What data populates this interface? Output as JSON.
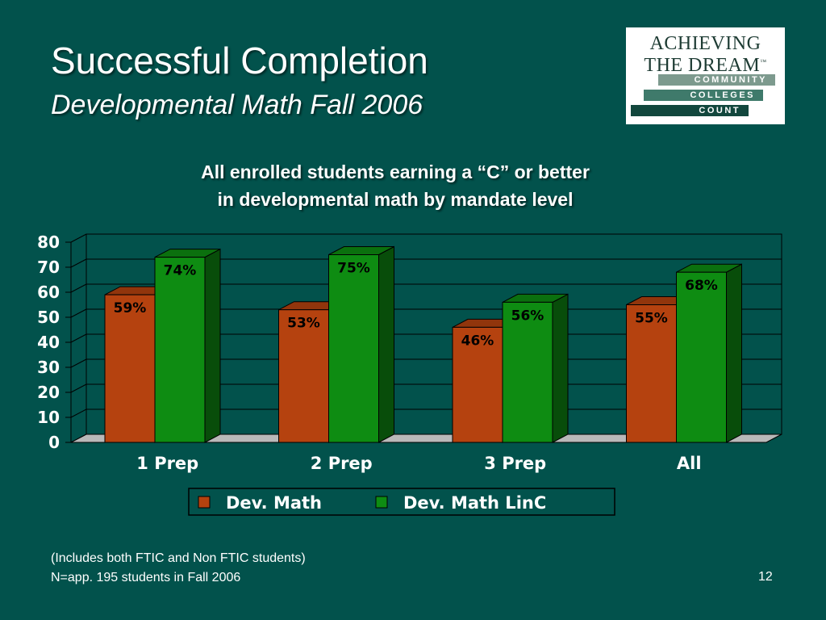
{
  "slide": {
    "title": "Successful Completion",
    "subtitle": "Developmental Math Fall 2006",
    "chart_heading_line1": "All enrolled students earning a “C” or better",
    "chart_heading_line2": "in developmental math by mandate level",
    "footnote_line1": "(Includes both FTIC and Non FTIC students)",
    "footnote_line2": "N=app. 195 students in Fall 2006",
    "page_number": "12"
  },
  "logo": {
    "line1": "ACHIEVING",
    "line2": "THE DREAM",
    "trademark": "™",
    "bar1": "COMMUNITY",
    "bar2": "COLLEGES",
    "bar3": "COUNT"
  },
  "chart_data": {
    "type": "bar",
    "categories": [
      "1 Prep",
      "2 Prep",
      "3 Prep",
      "All"
    ],
    "series": [
      {
        "name": "Dev. Math",
        "values": [
          59,
          53,
          46,
          55
        ],
        "labels": [
          "59%",
          "53%",
          "46%",
          "55%"
        ],
        "color": "#b5420f"
      },
      {
        "name": "Dev. Math LinC",
        "values": [
          74,
          75,
          56,
          68
        ],
        "labels": [
          "74%",
          "75%",
          "56%",
          "68%"
        ],
        "color": "#0e8c12"
      }
    ],
    "ylim": [
      0,
      80
    ],
    "yticks": [
      "0",
      "10",
      "20",
      "30",
      "40",
      "50",
      "60",
      "70",
      "80"
    ],
    "grid": true,
    "legend": "bottom",
    "three_d": true
  },
  "colors": {
    "background": "#02524c",
    "dev_math": "#b5420f",
    "dev_math_linc": "#0e8c12"
  }
}
